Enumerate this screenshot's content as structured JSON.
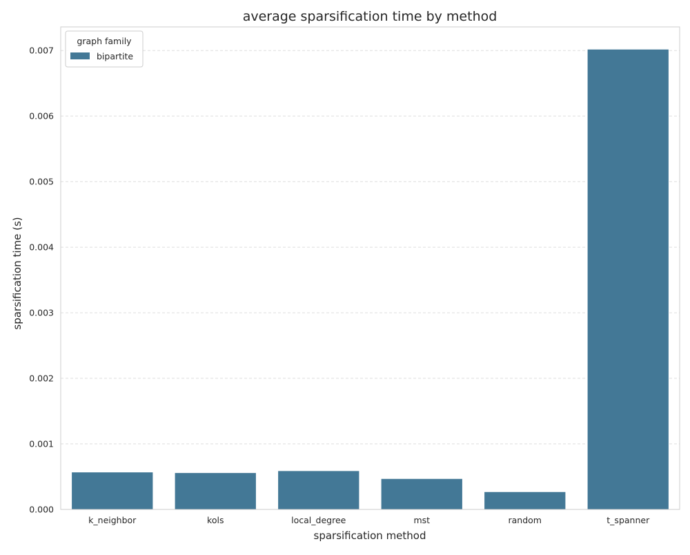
{
  "chart_data": {
    "type": "bar",
    "title": "average sparsification time by method",
    "xlabel": "sparsification method",
    "ylabel": "sparsification time (s)",
    "categories": [
      "k_neighbor",
      "kols",
      "local_degree",
      "mst",
      "random",
      "t_spanner"
    ],
    "series": [
      {
        "name": "bipartite",
        "color": "#437896",
        "values": [
          0.00057,
          0.00056,
          0.00059,
          0.00047,
          0.00027,
          0.00702
        ]
      }
    ],
    "ylim": [
      0,
      0.00736
    ],
    "yticks": [
      "0.000",
      "0.001",
      "0.002",
      "0.003",
      "0.004",
      "0.005",
      "0.006",
      "0.007"
    ],
    "ytick_values": [
      0,
      0.001,
      0.002,
      0.003,
      0.004,
      0.005,
      0.006,
      0.007
    ],
    "grid": "horizontal dashed",
    "legend": {
      "title": "graph family",
      "placement": "top-left"
    }
  }
}
